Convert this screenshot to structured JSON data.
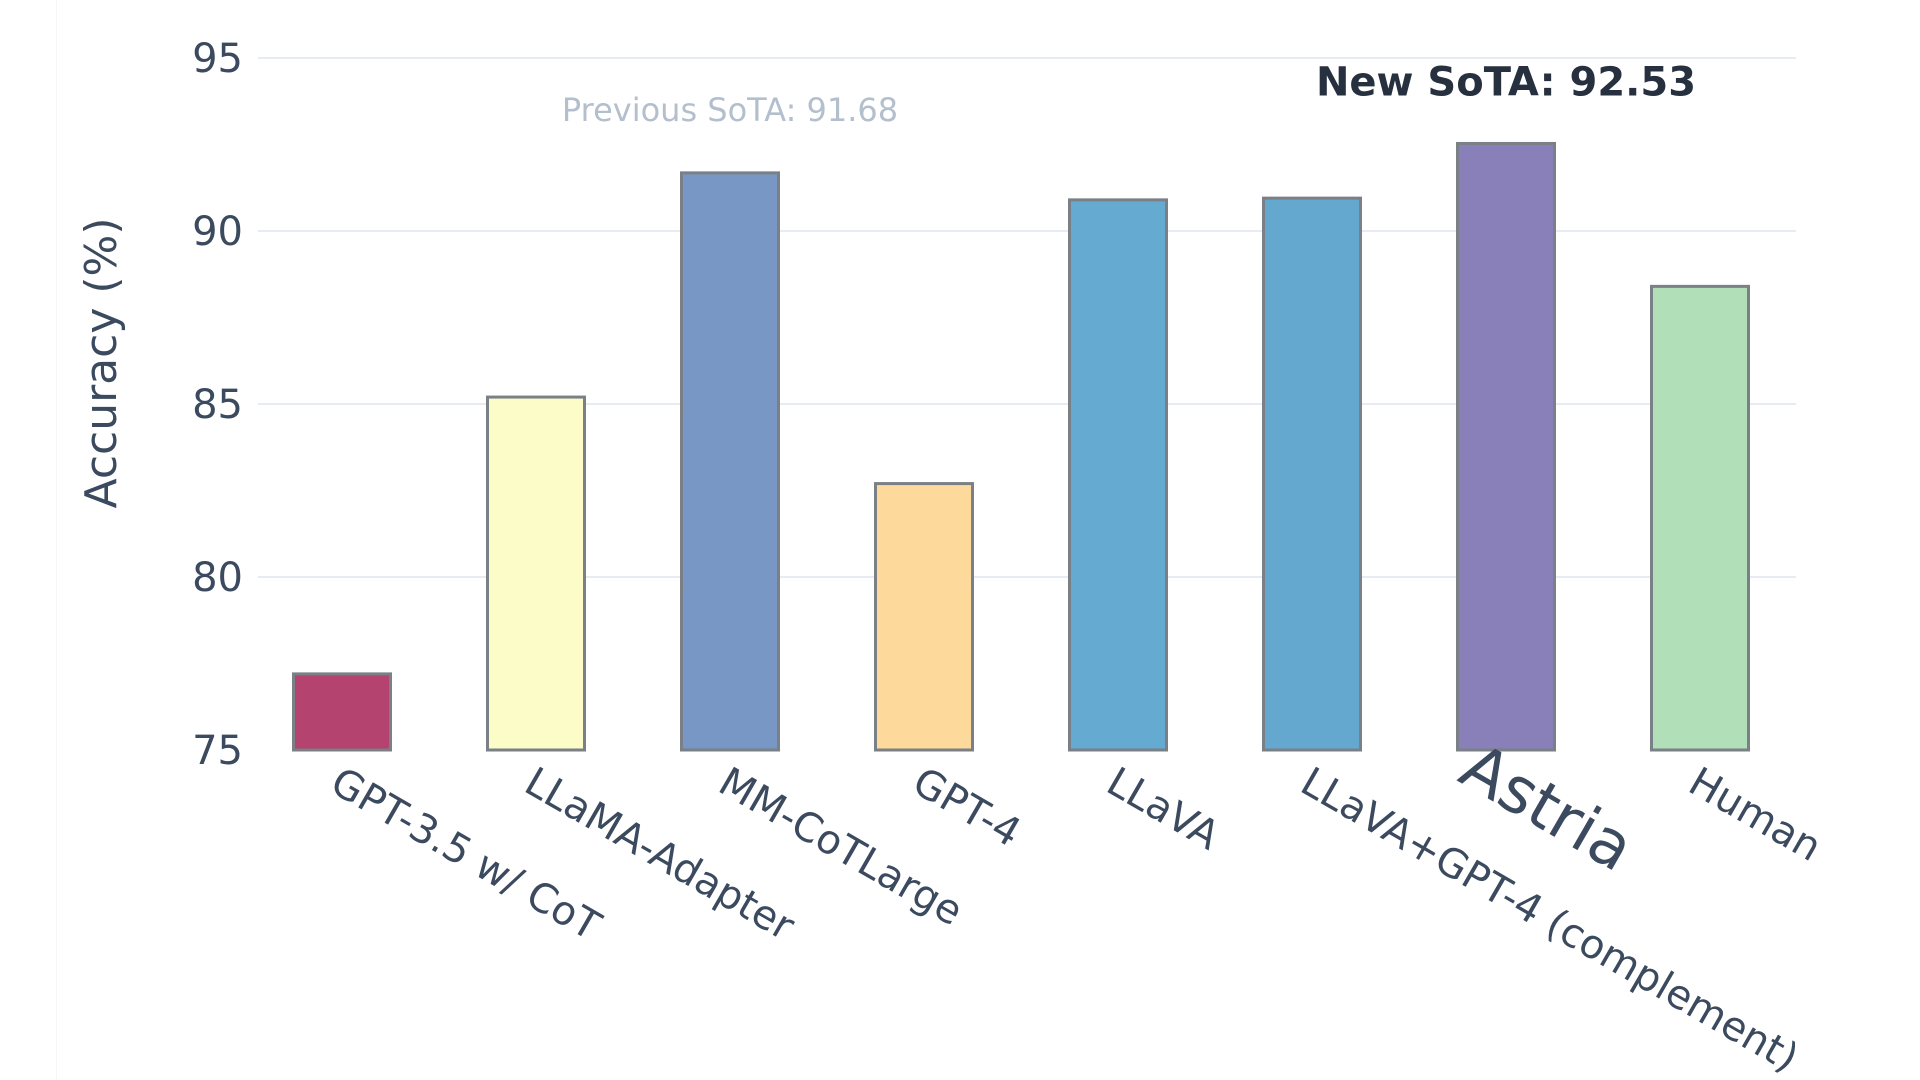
{
  "chart_data": {
    "type": "bar",
    "categories": [
      "GPT-3.5 w/ CoT",
      "LLaMA-Adapter",
      "MM-CoTLarge",
      "GPT-4",
      "LLaVA",
      "LLaVA+GPT-4 (complement)",
      "Astria",
      "Human"
    ],
    "values": [
      77.2,
      85.2,
      91.68,
      82.7,
      90.9,
      90.95,
      92.53,
      88.4
    ],
    "colors": [
      "#b44370",
      "#fbfcc8",
      "#7897c5",
      "#fdd99b",
      "#65aad0",
      "#64a8d0",
      "#8a80b9",
      "#b1e0b8"
    ],
    "highlight_category": "Astria",
    "title": "",
    "xlabel": "",
    "ylabel": "Accuracy (%)",
    "ylim": [
      75,
      95
    ],
    "yticks": [
      75,
      80,
      85,
      90,
      95
    ],
    "grid": true,
    "legend": "none",
    "annotations": [
      {
        "text": "Previous SoTA: 91.68",
        "category": "MM-CoTLarge",
        "value": 91.68,
        "style": "muted"
      },
      {
        "text": "New SoTA: 92.53",
        "category": "Astria",
        "value": 92.53,
        "style": "bold"
      }
    ]
  }
}
